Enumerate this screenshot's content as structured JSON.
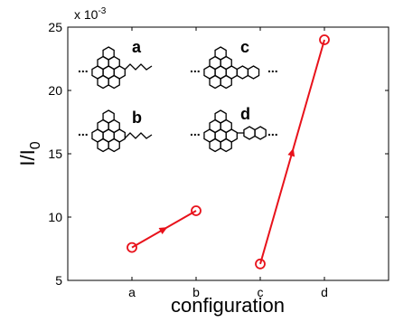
{
  "chart_data": {
    "type": "line",
    "title": "",
    "xlabel": "configuration",
    "ylabel": "I/I",
    "ylabel_subscript": "0",
    "y_exponent_label": "x 10",
    "y_exponent_power": "-3",
    "categories": [
      "a",
      "b",
      "c",
      "d"
    ],
    "x_range": [
      0,
      5
    ],
    "ylim": [
      5,
      25
    ],
    "yticks": [
      "5",
      "10",
      "15",
      "20",
      "25"
    ],
    "grid": false,
    "segments": [
      {
        "categories": [
          "a",
          "b"
        ],
        "values": [
          7.6,
          10.5
        ],
        "color": "#e8121b"
      },
      {
        "categories": [
          "c",
          "d"
        ],
        "values": [
          6.3,
          24.0
        ],
        "color": "#e8121b"
      }
    ],
    "marker": "open-circle",
    "inset_structures": [
      {
        "label": "a",
        "ellipsis": "..."
      },
      {
        "label": "c",
        "ellipsis": "..."
      },
      {
        "label": "b",
        "ellipsis": "..."
      },
      {
        "label": "d",
        "ellipsis": "..."
      }
    ]
  }
}
